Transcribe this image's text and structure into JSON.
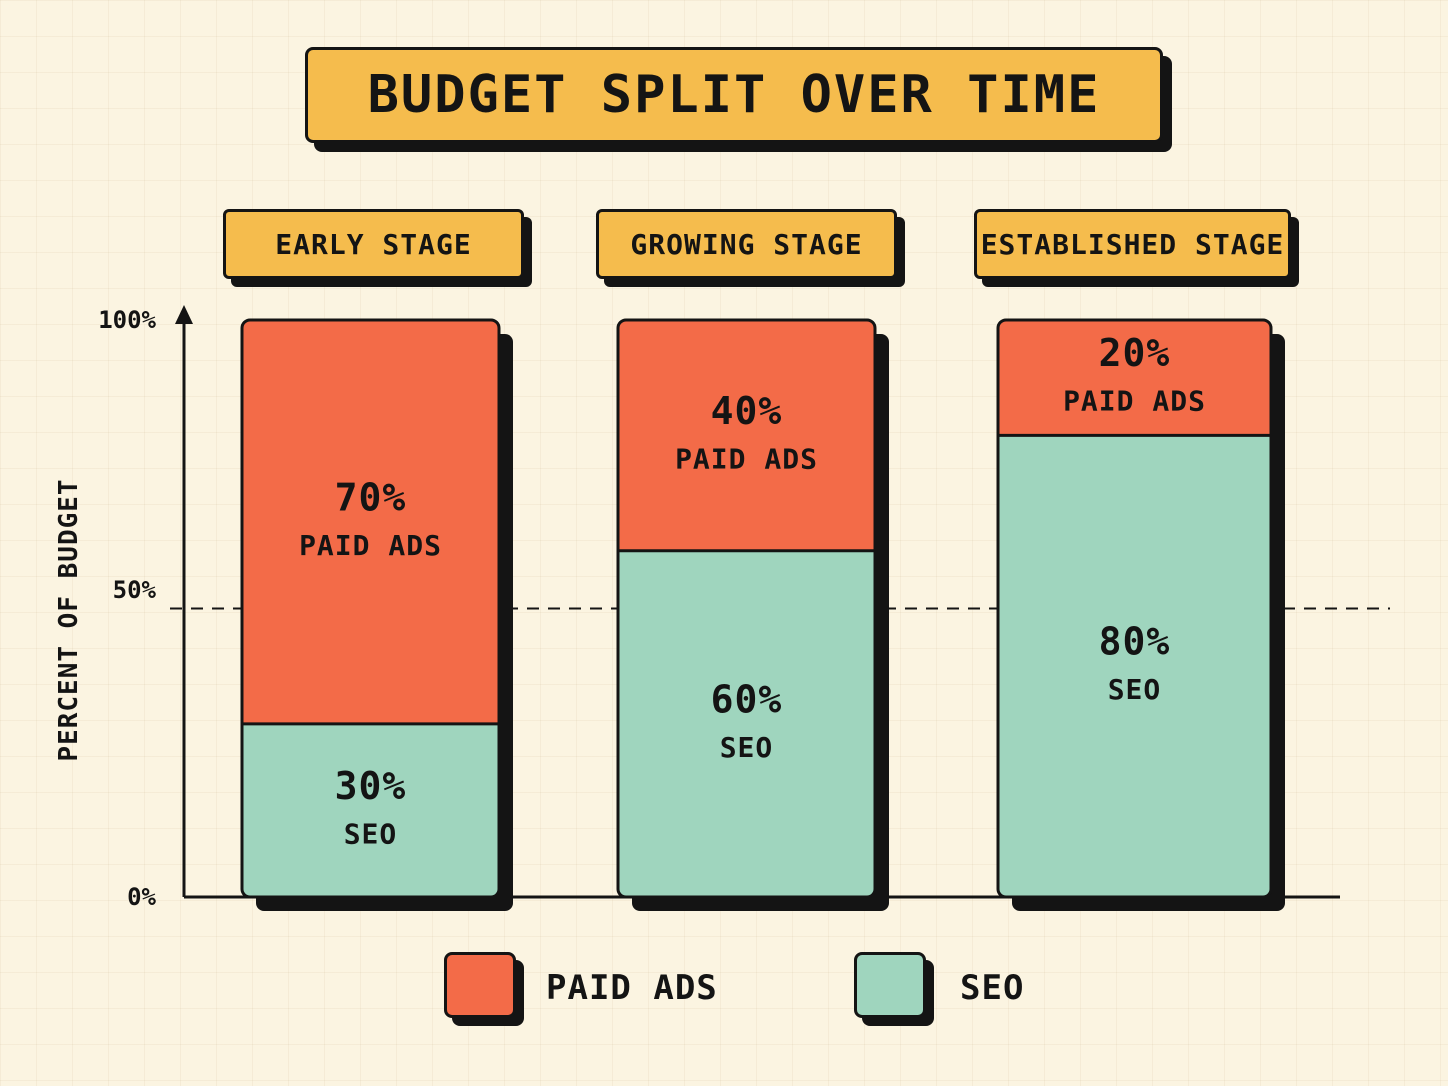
{
  "chart_data": {
    "type": "bar",
    "stacked": true,
    "title": "BUDGET SPLIT OVER TIME",
    "ylabel": "PERCENT OF BUDGET",
    "xlabel": "",
    "categories": [
      "EARLY STAGE",
      "GROWING STAGE",
      "ESTABLISHED STAGE"
    ],
    "series": [
      {
        "name": "SEO",
        "values": [
          30,
          60,
          80
        ],
        "color": "#9fd5be"
      },
      {
        "name": "PAID ADS",
        "values": [
          70,
          40,
          20
        ],
        "color": "#f36b48"
      }
    ],
    "ylim": [
      0,
      100
    ],
    "yticks": [
      "0%",
      "50%",
      "100%"
    ],
    "reference_line": 50,
    "segment_labels": {
      "SEO": [
        "30%",
        "60%",
        "80%"
      ],
      "PAID ADS": [
        "70%",
        "40%",
        "20%"
      ]
    },
    "segment_names": {
      "SEO": "SEO",
      "PAID ADS": "PAID ADS"
    },
    "legend": {
      "position": "bottom",
      "entries": [
        {
          "label": "PAID ADS",
          "color": "#f36b48"
        },
        {
          "label": "SEO",
          "color": "#9fd5be"
        }
      ]
    }
  }
}
